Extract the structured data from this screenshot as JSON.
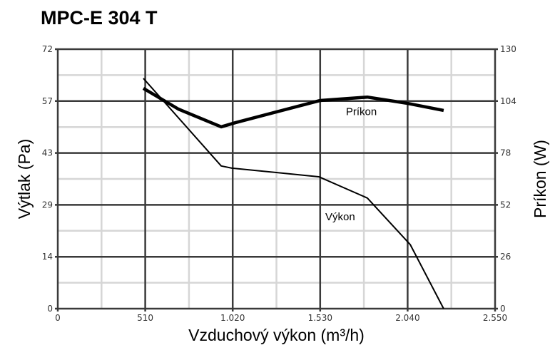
{
  "chart_data": {
    "type": "line",
    "title": "MPC-E 304 T",
    "xlabel": "Vzduchový výkon (m³/h)",
    "ylabel": "Výtlak (Pa)",
    "y2label": "Príkon (W)",
    "xlim": [
      0,
      2550
    ],
    "ylim": [
      0,
      72
    ],
    "y2lim": [
      0,
      130
    ],
    "xticks": [
      "0",
      "510",
      "1.020",
      "1.530",
      "2.040",
      "2.550"
    ],
    "yticks": [
      "0",
      "14",
      "29",
      "43",
      "57",
      "72"
    ],
    "y2ticks": [
      "0",
      "26",
      "52",
      "78",
      "104",
      "130"
    ],
    "grid": true,
    "series": [
      {
        "name": "Výkon",
        "axis": "left",
        "stroke": "thin",
        "color": "#000000",
        "x": [
          499,
          953,
          1015,
          1522,
          1805,
          2055,
          2250
        ],
        "y": [
          63.9,
          39.6,
          39.0,
          36.6,
          30.7,
          17.8,
          0
        ]
      },
      {
        "name": "Príkon",
        "axis": "right",
        "stroke": "thick",
        "color": "#000000",
        "x": [
          499,
          703,
          953,
          1036,
          1530,
          1805,
          2030,
          2250
        ],
        "y": [
          110.4,
          100.0,
          91.1,
          93.2,
          104.3,
          106.0,
          103.0,
          99.3
        ]
      }
    ],
    "annotations": [
      {
        "text": "Príkon",
        "x": 1680,
        "y2": 97
      },
      {
        "text": "Výkon",
        "x": 1560,
        "y": 24.5
      }
    ]
  }
}
